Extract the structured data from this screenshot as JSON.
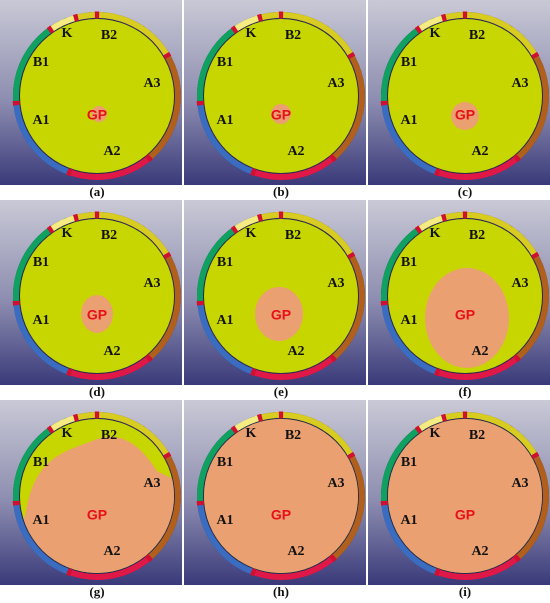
{
  "labels": {
    "K": "K",
    "B2": "B2",
    "B1": "B1",
    "A3": "A3",
    "A1": "A1",
    "A2": "A2",
    "GP": "GP"
  },
  "panels": [
    {
      "caption": "(a)"
    },
    {
      "caption": "(b)"
    },
    {
      "caption": "(c)"
    },
    {
      "caption": "(d)"
    },
    {
      "caption": "(e)"
    },
    {
      "caption": "(f)"
    },
    {
      "caption": "(g)"
    },
    {
      "caption": "(h)"
    },
    {
      "caption": "(i)"
    }
  ]
}
